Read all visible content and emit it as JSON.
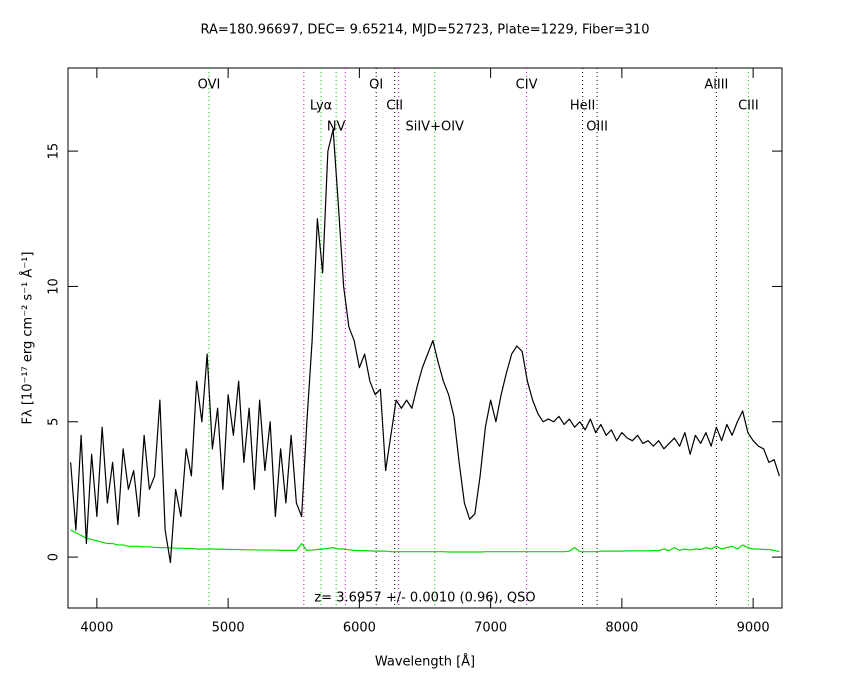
{
  "chart_data": {
    "type": "line",
    "title": "RA=180.96697, DEC= 9.65214, MJD=52723, Plate=1229, Fiber=310",
    "xlabel": "Wavelength [Å]",
    "ylabel": "Fλ [10⁻¹⁷ erg cm⁻² s⁻¹ Å⁻¹]",
    "annotation": "z= 3.6957 +/- 0.0010 (0.96), QSO",
    "xlim": [
      3780,
      9220
    ],
    "ylim": [
      -1.88,
      18.07
    ],
    "xticks": [
      4000,
      5000,
      6000,
      7000,
      8000,
      9000
    ],
    "yticks": [
      0,
      5,
      10,
      15
    ],
    "x": [
      3800,
      3840,
      3880,
      3920,
      3960,
      4000,
      4040,
      4080,
      4120,
      4160,
      4200,
      4240,
      4280,
      4320,
      4360,
      4400,
      4440,
      4480,
      4520,
      4560,
      4600,
      4640,
      4680,
      4720,
      4760,
      4800,
      4840,
      4880,
      4920,
      4960,
      5000,
      5040,
      5080,
      5120,
      5160,
      5200,
      5240,
      5280,
      5320,
      5360,
      5400,
      5440,
      5480,
      5520,
      5560,
      5600,
      5640,
      5680,
      5720,
      5760,
      5800,
      5840,
      5880,
      5920,
      5960,
      6000,
      6040,
      6080,
      6120,
      6160,
      6200,
      6240,
      6280,
      6320,
      6360,
      6400,
      6440,
      6480,
      6520,
      6560,
      6600,
      6640,
      6680,
      6720,
      6760,
      6800,
      6840,
      6880,
      6920,
      6960,
      7000,
      7040,
      7080,
      7120,
      7160,
      7200,
      7240,
      7280,
      7320,
      7360,
      7400,
      7440,
      7480,
      7520,
      7560,
      7600,
      7640,
      7680,
      7720,
      7760,
      7800,
      7840,
      7880,
      7920,
      7960,
      8000,
      8040,
      8080,
      8120,
      8160,
      8200,
      8240,
      8280,
      8320,
      8360,
      8400,
      8440,
      8480,
      8520,
      8560,
      8600,
      8640,
      8680,
      8720,
      8760,
      8800,
      8840,
      8880,
      8920,
      8960,
      9000,
      9040,
      9080,
      9120,
      9160,
      9200
    ],
    "series": [
      {
        "color": "#000000",
        "values": [
          3.5,
          1.0,
          4.5,
          0.5,
          3.8,
          1.5,
          4.8,
          2.0,
          3.5,
          1.2,
          4.0,
          2.5,
          3.2,
          1.5,
          4.5,
          2.5,
          3.0,
          5.8,
          1.0,
          -0.2,
          2.5,
          1.5,
          4.0,
          3.0,
          6.5,
          5.0,
          7.5,
          4.0,
          5.5,
          2.5,
          6.0,
          4.5,
          6.5,
          3.5,
          5.5,
          2.5,
          5.8,
          3.2,
          5.0,
          1.5,
          4.0,
          2.0,
          4.5,
          2.0,
          1.5,
          5.0,
          8.0,
          12.5,
          10.5,
          15.0,
          15.8,
          13.0,
          10.0,
          8.5,
          8.0,
          7.0,
          7.5,
          6.5,
          6.0,
          6.2,
          3.2,
          4.5,
          5.8,
          5.5,
          5.8,
          5.5,
          6.3,
          7.0,
          7.5,
          8.0,
          7.2,
          6.5,
          6.0,
          5.2,
          3.5,
          2.0,
          1.4,
          1.6,
          3.0,
          4.8,
          5.8,
          5.0,
          6.0,
          6.8,
          7.5,
          7.8,
          7.6,
          6.5,
          5.8,
          5.3,
          5.0,
          5.1,
          5.0,
          5.2,
          4.9,
          5.1,
          4.8,
          5.0,
          4.7,
          5.1,
          4.6,
          4.9,
          4.5,
          4.7,
          4.3,
          4.6,
          4.4,
          4.3,
          4.5,
          4.2,
          4.3,
          4.1,
          4.3,
          4.0,
          4.2,
          4.4,
          4.1,
          4.6,
          3.8,
          4.5,
          4.2,
          4.6,
          4.1,
          4.8,
          4.3,
          4.9,
          4.5,
          5.0,
          5.4,
          4.6,
          4.3,
          4.1,
          4.0,
          3.5,
          3.6,
          3.0
        ]
      },
      {
        "color": "#00dd00",
        "values": [
          1.0,
          0.9,
          0.8,
          0.7,
          0.65,
          0.6,
          0.55,
          0.5,
          0.5,
          0.45,
          0.45,
          0.4,
          0.4,
          0.4,
          0.38,
          0.38,
          0.36,
          0.35,
          0.35,
          0.34,
          0.33,
          0.33,
          0.32,
          0.32,
          0.3,
          0.3,
          0.3,
          0.3,
          0.29,
          0.29,
          0.28,
          0.28,
          0.28,
          0.27,
          0.27,
          0.27,
          0.26,
          0.26,
          0.26,
          0.26,
          0.25,
          0.25,
          0.25,
          0.25,
          0.5,
          0.25,
          0.26,
          0.28,
          0.3,
          0.32,
          0.35,
          0.3,
          0.3,
          0.27,
          0.25,
          0.24,
          0.24,
          0.23,
          0.22,
          0.22,
          0.22,
          0.2,
          0.2,
          0.2,
          0.2,
          0.2,
          0.2,
          0.2,
          0.2,
          0.2,
          0.2,
          0.2,
          0.19,
          0.19,
          0.19,
          0.19,
          0.19,
          0.19,
          0.19,
          0.2,
          0.2,
          0.2,
          0.2,
          0.2,
          0.2,
          0.2,
          0.2,
          0.2,
          0.2,
          0.2,
          0.2,
          0.2,
          0.2,
          0.2,
          0.2,
          0.22,
          0.35,
          0.2,
          0.2,
          0.2,
          0.2,
          0.22,
          0.22,
          0.22,
          0.22,
          0.22,
          0.23,
          0.23,
          0.23,
          0.23,
          0.23,
          0.24,
          0.24,
          0.3,
          0.24,
          0.35,
          0.25,
          0.3,
          0.26,
          0.3,
          0.28,
          0.35,
          0.3,
          0.4,
          0.3,
          0.35,
          0.4,
          0.3,
          0.45,
          0.35,
          0.3,
          0.3,
          0.28,
          0.28,
          0.25,
          0.2
        ]
      }
    ],
    "markers": [
      {
        "label": "OVI",
        "x": 4854,
        "color": "#00cc00"
      },
      {
        "label": "Lyα",
        "x": 5708,
        "color": "#00cc00"
      },
      {
        "label": "NV",
        "x": 5823,
        "color": "#00cc00"
      },
      {
        "label": "OI",
        "x": 6128,
        "color": "#000000"
      },
      {
        "label": "CII",
        "x": 6269,
        "color": "#000000"
      },
      {
        "label": "SiIV+OIV",
        "x": 6574,
        "color": "#00cc00"
      },
      {
        "label": "CIV",
        "x": 7274,
        "color": "#cc00cc"
      },
      {
        "label": "HeII",
        "x": 7701,
        "color": "#000000"
      },
      {
        "label": "OIII",
        "x": 7811,
        "color": "#000000"
      },
      {
        "label": "AlIII",
        "x": 8720,
        "color": "#000000"
      },
      {
        "label": "CIII",
        "x": 8964,
        "color": "#00cc00"
      }
    ],
    "extra_markers": [
      {
        "x": 5577,
        "color": "#cc00cc"
      },
      {
        "x": 5893,
        "color": "#cc00cc"
      },
      {
        "x": 6300,
        "color": "#cc00cc"
      }
    ]
  }
}
